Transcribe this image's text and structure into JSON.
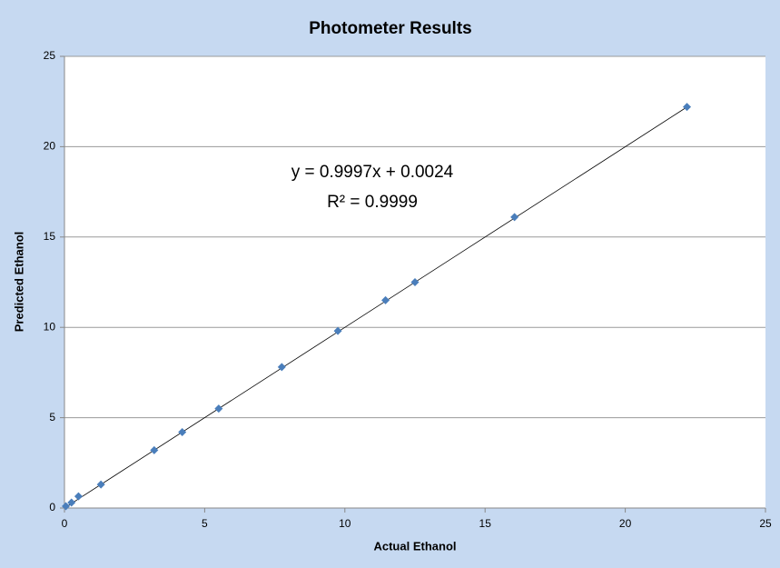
{
  "chart_data": {
    "type": "scatter",
    "title": "Photometer Results",
    "x_label": "Actual Ethanol",
    "y_label": "Predicted Ethanol",
    "series": [
      {
        "color": "#4a7ebb",
        "x": [
          0.05,
          0.25,
          0.5,
          1.3,
          3.2,
          4.2,
          5.5,
          7.75,
          9.75,
          11.45,
          12.5,
          16.05,
          22.2
        ],
        "values": [
          0.1,
          0.3,
          0.65,
          1.3,
          3.2,
          4.2,
          5.5,
          7.8,
          9.8,
          11.5,
          12.5,
          16.1,
          22.2
        ]
      }
    ],
    "trendline": {
      "slope": 0.9997,
      "intercept": 0.0024,
      "color": "#000000"
    },
    "annotations": [
      "y = 0.9997x + 0.0024",
      "R² = 0.9999"
    ],
    "xlim": [
      0,
      25
    ],
    "xticks": [
      0,
      5,
      10,
      15,
      20,
      25
    ],
    "ylim": [
      0,
      25
    ],
    "yticks": [
      0,
      5,
      10,
      15,
      20,
      25
    ],
    "grid": true
  }
}
